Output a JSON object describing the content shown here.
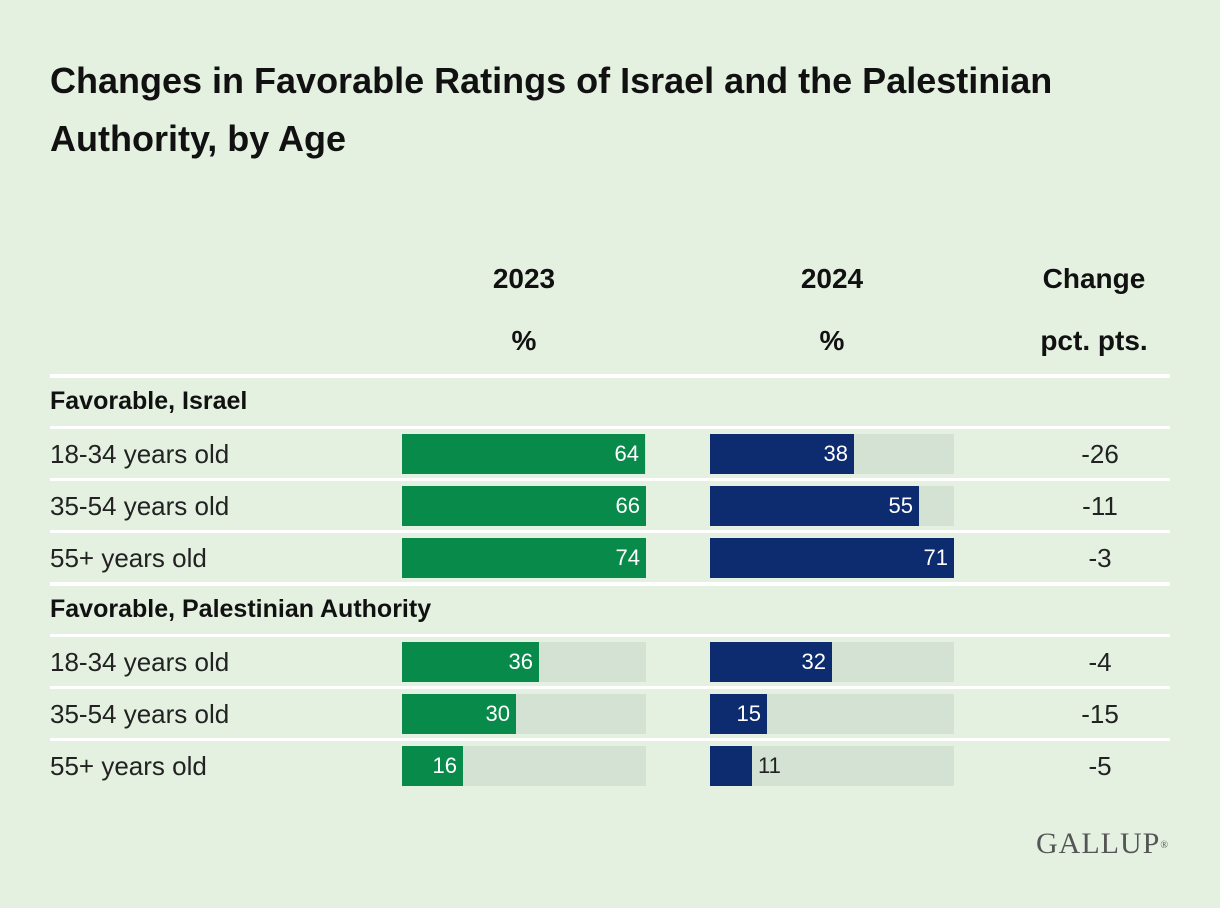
{
  "title": "Changes in Favorable Ratings of Israel and the Palestinian Authority, by Age",
  "columns": {
    "y2023": "2023",
    "y2023_unit": "%",
    "y2024": "2024",
    "y2024_unit": "%",
    "change": "Change",
    "change_unit": "pct. pts."
  },
  "colors": {
    "2023": "#088a4b",
    "2024": "#0d2b6f",
    "track": "#d3e2d3"
  },
  "brand": "GALLUP",
  "chart_data": {
    "type": "bar",
    "groups": [
      {
        "label": "Favorable, Israel",
        "rows": [
          {
            "label": "18-34 years old",
            "y2023": 64,
            "y2024": 38,
            "change": "-26"
          },
          {
            "label": "35-54 years old",
            "y2023": 66,
            "y2024": 55,
            "change": "-11"
          },
          {
            "label": "55+ years old",
            "y2023": 74,
            "y2024": 71,
            "change": "-3"
          }
        ]
      },
      {
        "label": "Favorable, Palestinian Authority",
        "rows": [
          {
            "label": "18-34 years old",
            "y2023": 36,
            "y2024": 32,
            "change": "-4"
          },
          {
            "label": "35-54 years old",
            "y2023": 30,
            "y2024": 15,
            "change": "-15"
          },
          {
            "label": "55+ years old",
            "y2023": 16,
            "y2024": 11,
            "change": "-5"
          }
        ]
      }
    ],
    "series": [
      {
        "name": "2023",
        "color": "#088a4b"
      },
      {
        "name": "2024",
        "color": "#0d2b6f"
      }
    ],
    "xlim": [
      0,
      100
    ]
  }
}
